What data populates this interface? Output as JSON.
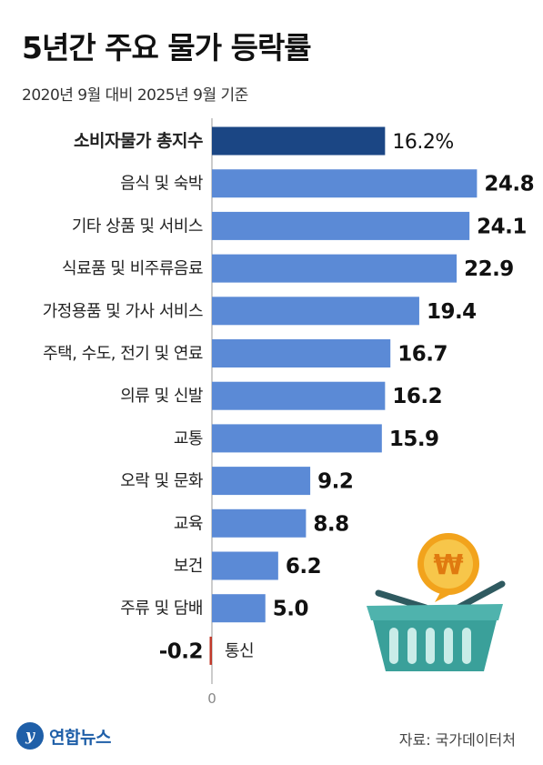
{
  "header": {
    "title": "5년간 주요 물가 등락률",
    "subtitle": "2020년 9월 대비 2025년 9월 기준"
  },
  "footer": {
    "logo_text": "연합뉴스",
    "logo_mark": "y",
    "source": "자료: 국가데이터처"
  },
  "illustration": {
    "icon": "shopping-basket-icon",
    "coin_symbol": "₩"
  },
  "colors": {
    "total_bar": "#1b4684",
    "bar": "#5b8ad6",
    "negative_bar": "#c0392b",
    "axis": "#999999"
  },
  "chart_data": {
    "type": "bar",
    "orientation": "horizontal",
    "categories": [
      "소비자물가 총지수",
      "음식 및 숙박",
      "기타 상품 및 서비스",
      "식료품 및 비주류음료",
      "가정용품 및 가사 서비스",
      "주택, 수도, 전기 및 연료",
      "의류 및 신발",
      "교통",
      "오락 및 문화",
      "교육",
      "보건",
      "주류 및 담배",
      "통신"
    ],
    "values": [
      16.2,
      24.8,
      24.1,
      22.9,
      19.4,
      16.7,
      16.2,
      15.9,
      9.2,
      8.8,
      6.2,
      5.0,
      -0.2
    ],
    "value_labels": [
      "16.2%",
      "24.8",
      "24.1",
      "22.9",
      "19.4",
      "16.7",
      "16.2",
      "15.9",
      "9.2",
      "8.8",
      "6.2",
      "5.0",
      "-0.2"
    ],
    "highlight_index": 0,
    "x_tick_labels": [
      "0"
    ],
    "xlim": [
      -0.2,
      24.8
    ],
    "grid": false,
    "legend": "none"
  }
}
